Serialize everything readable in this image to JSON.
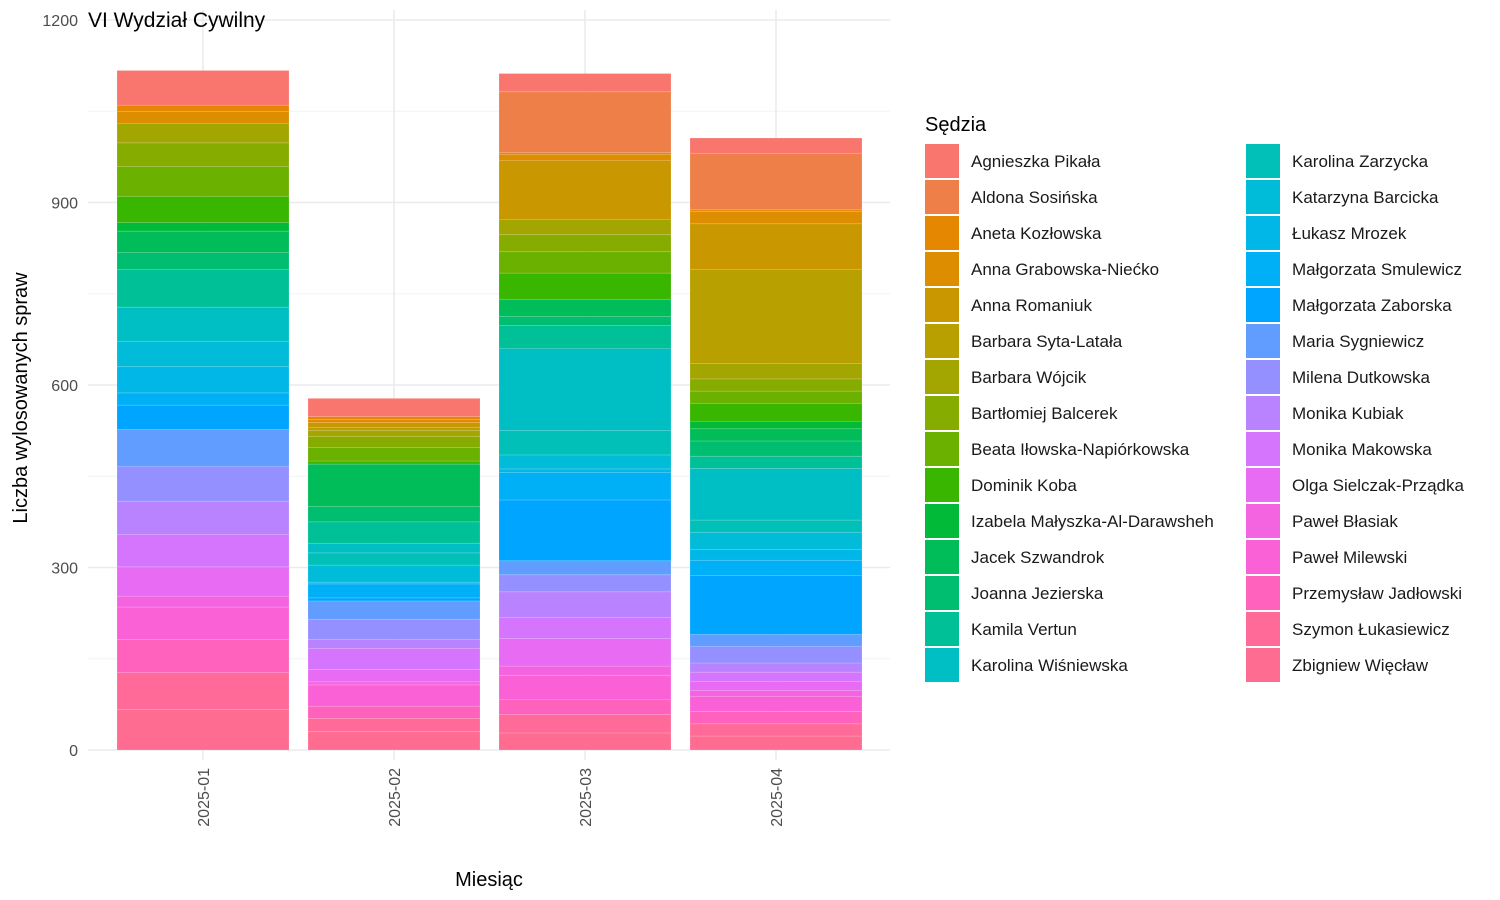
{
  "chart_data": {
    "type": "bar",
    "stacked": true,
    "title": "VI Wydział Cywilny",
    "xlabel": "Miesiąc",
    "ylabel": "Liczba wylosowanych spraw",
    "categories": [
      "2025-01",
      "2025-02",
      "2025-03",
      "2025-04"
    ],
    "ylim": [
      0,
      1200
    ],
    "yticks": [
      0,
      300,
      600,
      900,
      1200
    ],
    "grid": true,
    "legend_title": "Sędzia",
    "legend_position": "right",
    "series": [
      {
        "name": "Agnieszka Pikała",
        "color": "#F8766D",
        "values": [
          57,
          30,
          30,
          25
        ]
      },
      {
        "name": "Aldona Sosińska",
        "color": "#EF7F49",
        "values": [
          0,
          0,
          100,
          93
        ]
      },
      {
        "name": "Aneta Kozłowska",
        "color": "#E58700",
        "values": [
          10,
          5,
          3,
          3
        ]
      },
      {
        "name": "Anna Grabowska-Niećko",
        "color": "#DC8E00",
        "values": [
          20,
          5,
          10,
          20
        ]
      },
      {
        "name": "Anna Romaniuk",
        "color": "#C99800",
        "values": [
          0,
          8,
          97,
          75
        ]
      },
      {
        "name": "Barbara Syta-Latała",
        "color": "#B7A000",
        "values": [
          0,
          5,
          0,
          155
        ]
      },
      {
        "name": "Barbara Wójcik",
        "color": "#A3A500",
        "values": [
          32,
          10,
          25,
          25
        ]
      },
      {
        "name": "Bartłomiej Balcerek",
        "color": "#86AC00",
        "values": [
          39,
          18,
          28,
          20
        ]
      },
      {
        "name": "Beata Iłowska-Napiórkowska",
        "color": "#6BB100",
        "values": [
          49,
          22,
          35,
          20
        ]
      },
      {
        "name": "Dominik Koba",
        "color": "#39B600",
        "values": [
          43,
          5,
          43,
          30
        ]
      },
      {
        "name": "Izabela Małyszka-Al-Darawsheh",
        "color": "#00BA38",
        "values": [
          14,
          0,
          0,
          12
        ]
      },
      {
        "name": "Jacek Szwandrok",
        "color": "#00BC59",
        "values": [
          35,
          70,
          28,
          20
        ]
      },
      {
        "name": "Joanna Jezierska",
        "color": "#00BE70",
        "values": [
          28,
          25,
          15,
          25
        ]
      },
      {
        "name": "Kamila Vertun",
        "color": "#00C097",
        "values": [
          62,
          35,
          38,
          20
        ]
      },
      {
        "name": "Karolina Wiśniewska",
        "color": "#00BFC4",
        "values": [
          56,
          16,
          135,
          85
        ]
      },
      {
        "name": "Karolina Zarzycka",
        "color": "#00C0B8",
        "values": [
          0,
          20,
          40,
          20
        ]
      },
      {
        "name": "Katarzyna Barcicka",
        "color": "#00BCD8",
        "values": [
          42,
          28,
          23,
          28
        ]
      },
      {
        "name": "Łukasz Mrozek",
        "color": "#00B7E7",
        "values": [
          43,
          3,
          6,
          18
        ]
      },
      {
        "name": "Małgorzata Smulewicz",
        "color": "#00B0F6",
        "values": [
          20,
          23,
          45,
          25
        ]
      },
      {
        "name": "Małgorzata Zaborska",
        "color": "#00A5FF",
        "values": [
          40,
          5,
          100,
          97
        ]
      },
      {
        "name": "Maria Sygniewicz",
        "color": "#619CFF",
        "values": [
          61,
          30,
          23,
          20
        ]
      },
      {
        "name": "Milena Dutkowska",
        "color": "#9590FF",
        "values": [
          57,
          33,
          28,
          27
        ]
      },
      {
        "name": "Monika Kubiak",
        "color": "#B983FF",
        "values": [
          55,
          15,
          42,
          15
        ]
      },
      {
        "name": "Monika Makowska",
        "color": "#D575FE",
        "values": [
          53,
          35,
          35,
          15
        ]
      },
      {
        "name": "Olga Sielczak-Prządka",
        "color": "#E76BF3",
        "values": [
          48,
          20,
          45,
          15
        ]
      },
      {
        "name": "Paweł Błasiak",
        "color": "#F464E0",
        "values": [
          18,
          5,
          15,
          10
        ]
      },
      {
        "name": "Paweł Milewski",
        "color": "#FB61D7",
        "values": [
          53,
          35,
          40,
          25
        ]
      },
      {
        "name": "Przemysław Jadłowski",
        "color": "#FF62BC",
        "values": [
          55,
          20,
          25,
          20
        ]
      },
      {
        "name": "Szymon Łukasiewicz",
        "color": "#FF6A98",
        "values": [
          60,
          22,
          30,
          20
        ]
      },
      {
        "name": "Zbigniew Więcław",
        "color": "#FF6C91",
        "values": [
          67,
          30,
          28,
          23
        ]
      }
    ]
  }
}
